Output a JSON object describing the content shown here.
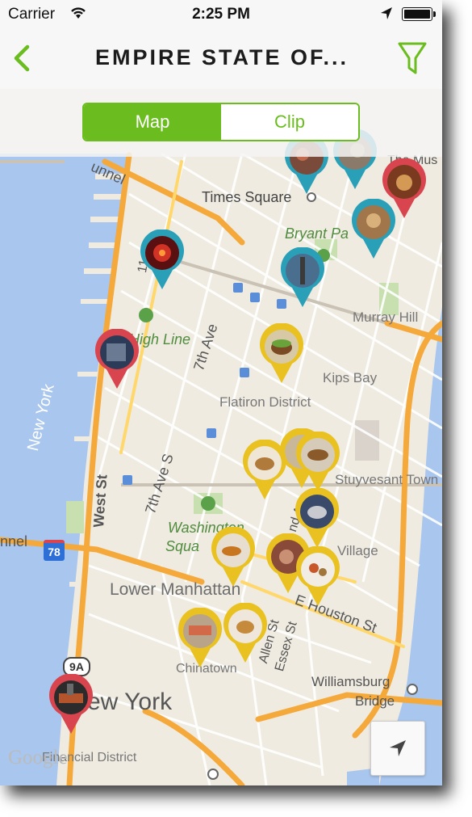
{
  "status_bar": {
    "carrier": "Carrier",
    "time": "2:25 PM"
  },
  "nav": {
    "title": "EMPIRE STATE OF..."
  },
  "segment": {
    "map_label": "Map",
    "clip_label": "Clip",
    "selected": "Map"
  },
  "map": {
    "labels": {
      "times_square": "Times Square",
      "bryant_park": "Bryant Pa",
      "murray_hill": "Murray Hill",
      "high_line": "High Line",
      "seventh_ave": "7th Ave",
      "kips_bay": "Kips Bay",
      "flatiron": "Flatiron District",
      "new_york_river": "New York",
      "seventh_ave_s": "7th Ave S",
      "stuyvesant": "Stuyvesant Town",
      "west_st": "West St",
      "washington": "Washington",
      "square": "Squa",
      "village": "Village",
      "tunnel_top": "unnel",
      "tunnel_left": "nnel",
      "route_78": "78",
      "lower_manhattan": "Lower Manhattan",
      "houston": "E Houston St",
      "allen_st": "Allen St",
      "essex_st": "Essex St",
      "chinatown": "Chinatown",
      "route_9a": "9A",
      "williamsburg": "Williamsburg",
      "bridge": "Bridge",
      "new_york_city": "ew York",
      "financial": "Financial District",
      "the_mus": "The Mus",
      "grand_ave": "nd Ave",
      "eleventh": "11"
    },
    "google_logo": "Google"
  },
  "colors": {
    "green": "#6bbd1f",
    "teal": "#2a9fb8",
    "red": "#d9454e",
    "yellow": "#e9c221"
  }
}
